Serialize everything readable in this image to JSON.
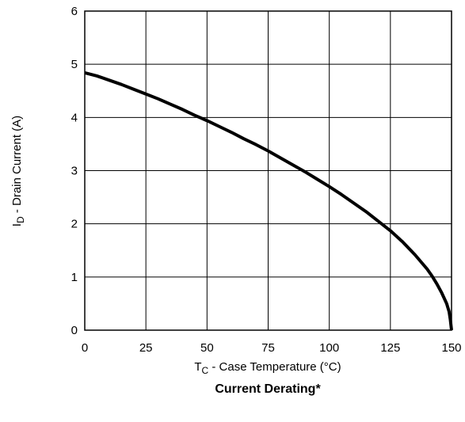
{
  "chart_data": {
    "type": "line",
    "title": "Current Derating*",
    "xlabel": {
      "main": "T",
      "sub": "C",
      "rest": " - Case Temperature (°C)"
    },
    "ylabel": {
      "main": "I",
      "sub": "D",
      "rest": " - Drain Current (A)"
    },
    "xlim": [
      0,
      150
    ],
    "ylim": [
      0,
      6
    ],
    "xticks": [
      0,
      25,
      50,
      75,
      100,
      125,
      150
    ],
    "yticks": [
      0,
      1,
      2,
      3,
      4,
      5,
      6
    ],
    "grid": true,
    "series": [
      {
        "color": "#000000",
        "x": [
          0,
          5,
          10,
          15,
          20,
          25,
          30,
          35,
          40,
          45,
          50,
          55,
          60,
          65,
          70,
          75,
          80,
          85,
          90,
          95,
          100,
          105,
          110,
          115,
          120,
          125,
          130,
          135,
          140,
          142,
          144,
          146,
          148,
          149,
          149.5,
          150
        ],
        "y": [
          4.84,
          4.78,
          4.7,
          4.62,
          4.53,
          4.44,
          4.35,
          4.25,
          4.15,
          4.04,
          3.94,
          3.83,
          3.72,
          3.6,
          3.49,
          3.37,
          3.24,
          3.11,
          2.98,
          2.84,
          2.7,
          2.55,
          2.39,
          2.23,
          2.05,
          1.87,
          1.66,
          1.42,
          1.15,
          1.02,
          0.87,
          0.7,
          0.5,
          0.35,
          0.2,
          0.0
        ]
      }
    ]
  }
}
